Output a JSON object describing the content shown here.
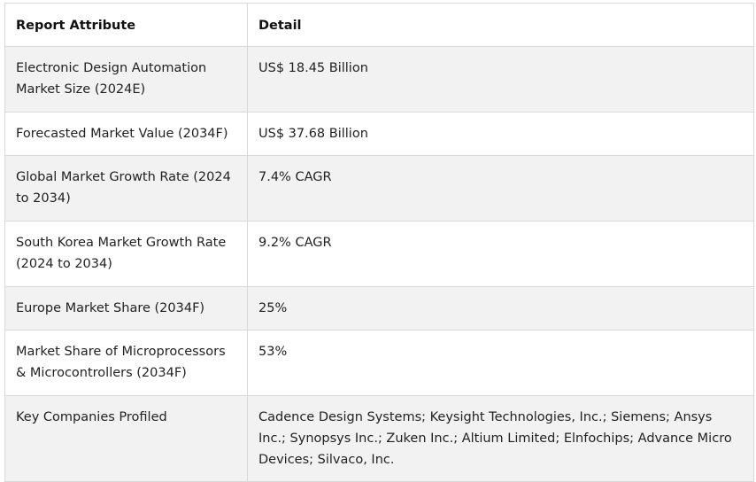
{
  "table": {
    "headers": [
      "Report Attribute",
      "Detail"
    ],
    "rows": [
      [
        "Electronic Design Automation Market Size (2024E)",
        "US$ 18.45 Billion"
      ],
      [
        "Forecasted Market Value (2034F)",
        "US$ 37.68 Billion"
      ],
      [
        "Global Market Growth Rate (2024 to 2034)",
        "7.4% CAGR"
      ],
      [
        "South Korea Market Growth Rate (2024 to 2034)",
        "9.2% CAGR"
      ],
      [
        "Europe Market Share (2034F)",
        "25%"
      ],
      [
        "Market Share of Microprocessors & Microcontrollers (2034F)",
        "53%"
      ],
      [
        "Key Companies Profiled",
        "Cadence Design Systems; Keysight Technologies, Inc.; Siemens; Ansys Inc.; Synopsys Inc.; Zuken Inc.; Altium Limited; Elnfochips; Advance Micro Devices; Silvaco, Inc."
      ]
    ]
  }
}
